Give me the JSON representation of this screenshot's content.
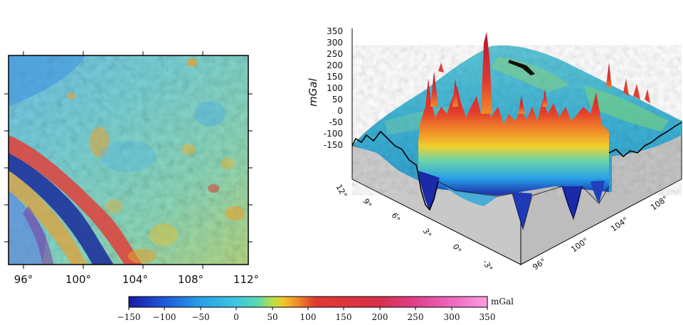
{
  "map_panel": {
    "x_ticks": [
      "96°",
      "100°",
      "104°",
      "108°",
      "112°"
    ]
  },
  "surface_panel": {
    "z_axis_label": "mGal",
    "z_ticks": [
      "350",
      "300",
      "250",
      "200",
      "150",
      "100",
      "50",
      "0",
      "-50",
      "-100",
      "-150"
    ],
    "lat_ticks": [
      "12°",
      "9°",
      "6°",
      "3°",
      "0°",
      "-3°"
    ],
    "lon_ticks": [
      "96°",
      "100°",
      "104°",
      "108°"
    ]
  },
  "colorbar": {
    "unit": "mGal",
    "ticks": [
      "−150",
      "−100",
      "−50",
      "0",
      "50",
      "100",
      "150",
      "200",
      "250",
      "300",
      "350"
    ],
    "range": [
      -150,
      350
    ],
    "colors": [
      "#1a1aa6",
      "#1e5ad8",
      "#2a9ee8",
      "#3ec6e0",
      "#5ad8b0",
      "#b8e04a",
      "#f0c828",
      "#f08c2a",
      "#e03a32",
      "#d8304a",
      "#e0408c",
      "#f070c8",
      "#ff9ee0"
    ]
  }
}
